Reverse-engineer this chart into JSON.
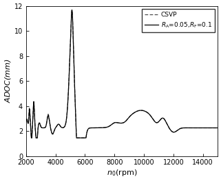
{
  "title": "",
  "xlabel": "$n_0$(rpm)",
  "ylabel": "$ADOC$(mm)",
  "xlim": [
    2000,
    15000
  ],
  "ylim": [
    0,
    12
  ],
  "xticks": [
    2000,
    4000,
    6000,
    8000,
    10000,
    12000,
    14000
  ],
  "yticks": [
    0,
    2,
    4,
    6,
    8,
    10,
    12
  ],
  "legend_csvp": "CSVP",
  "legend_mod": "$R_{\\mathrm{A}}$=0.05,$R_{\\mathrm{F}}$=0.1",
  "background_color": "#ffffff",
  "line_color": "#000000",
  "dashed_color": "#444444"
}
